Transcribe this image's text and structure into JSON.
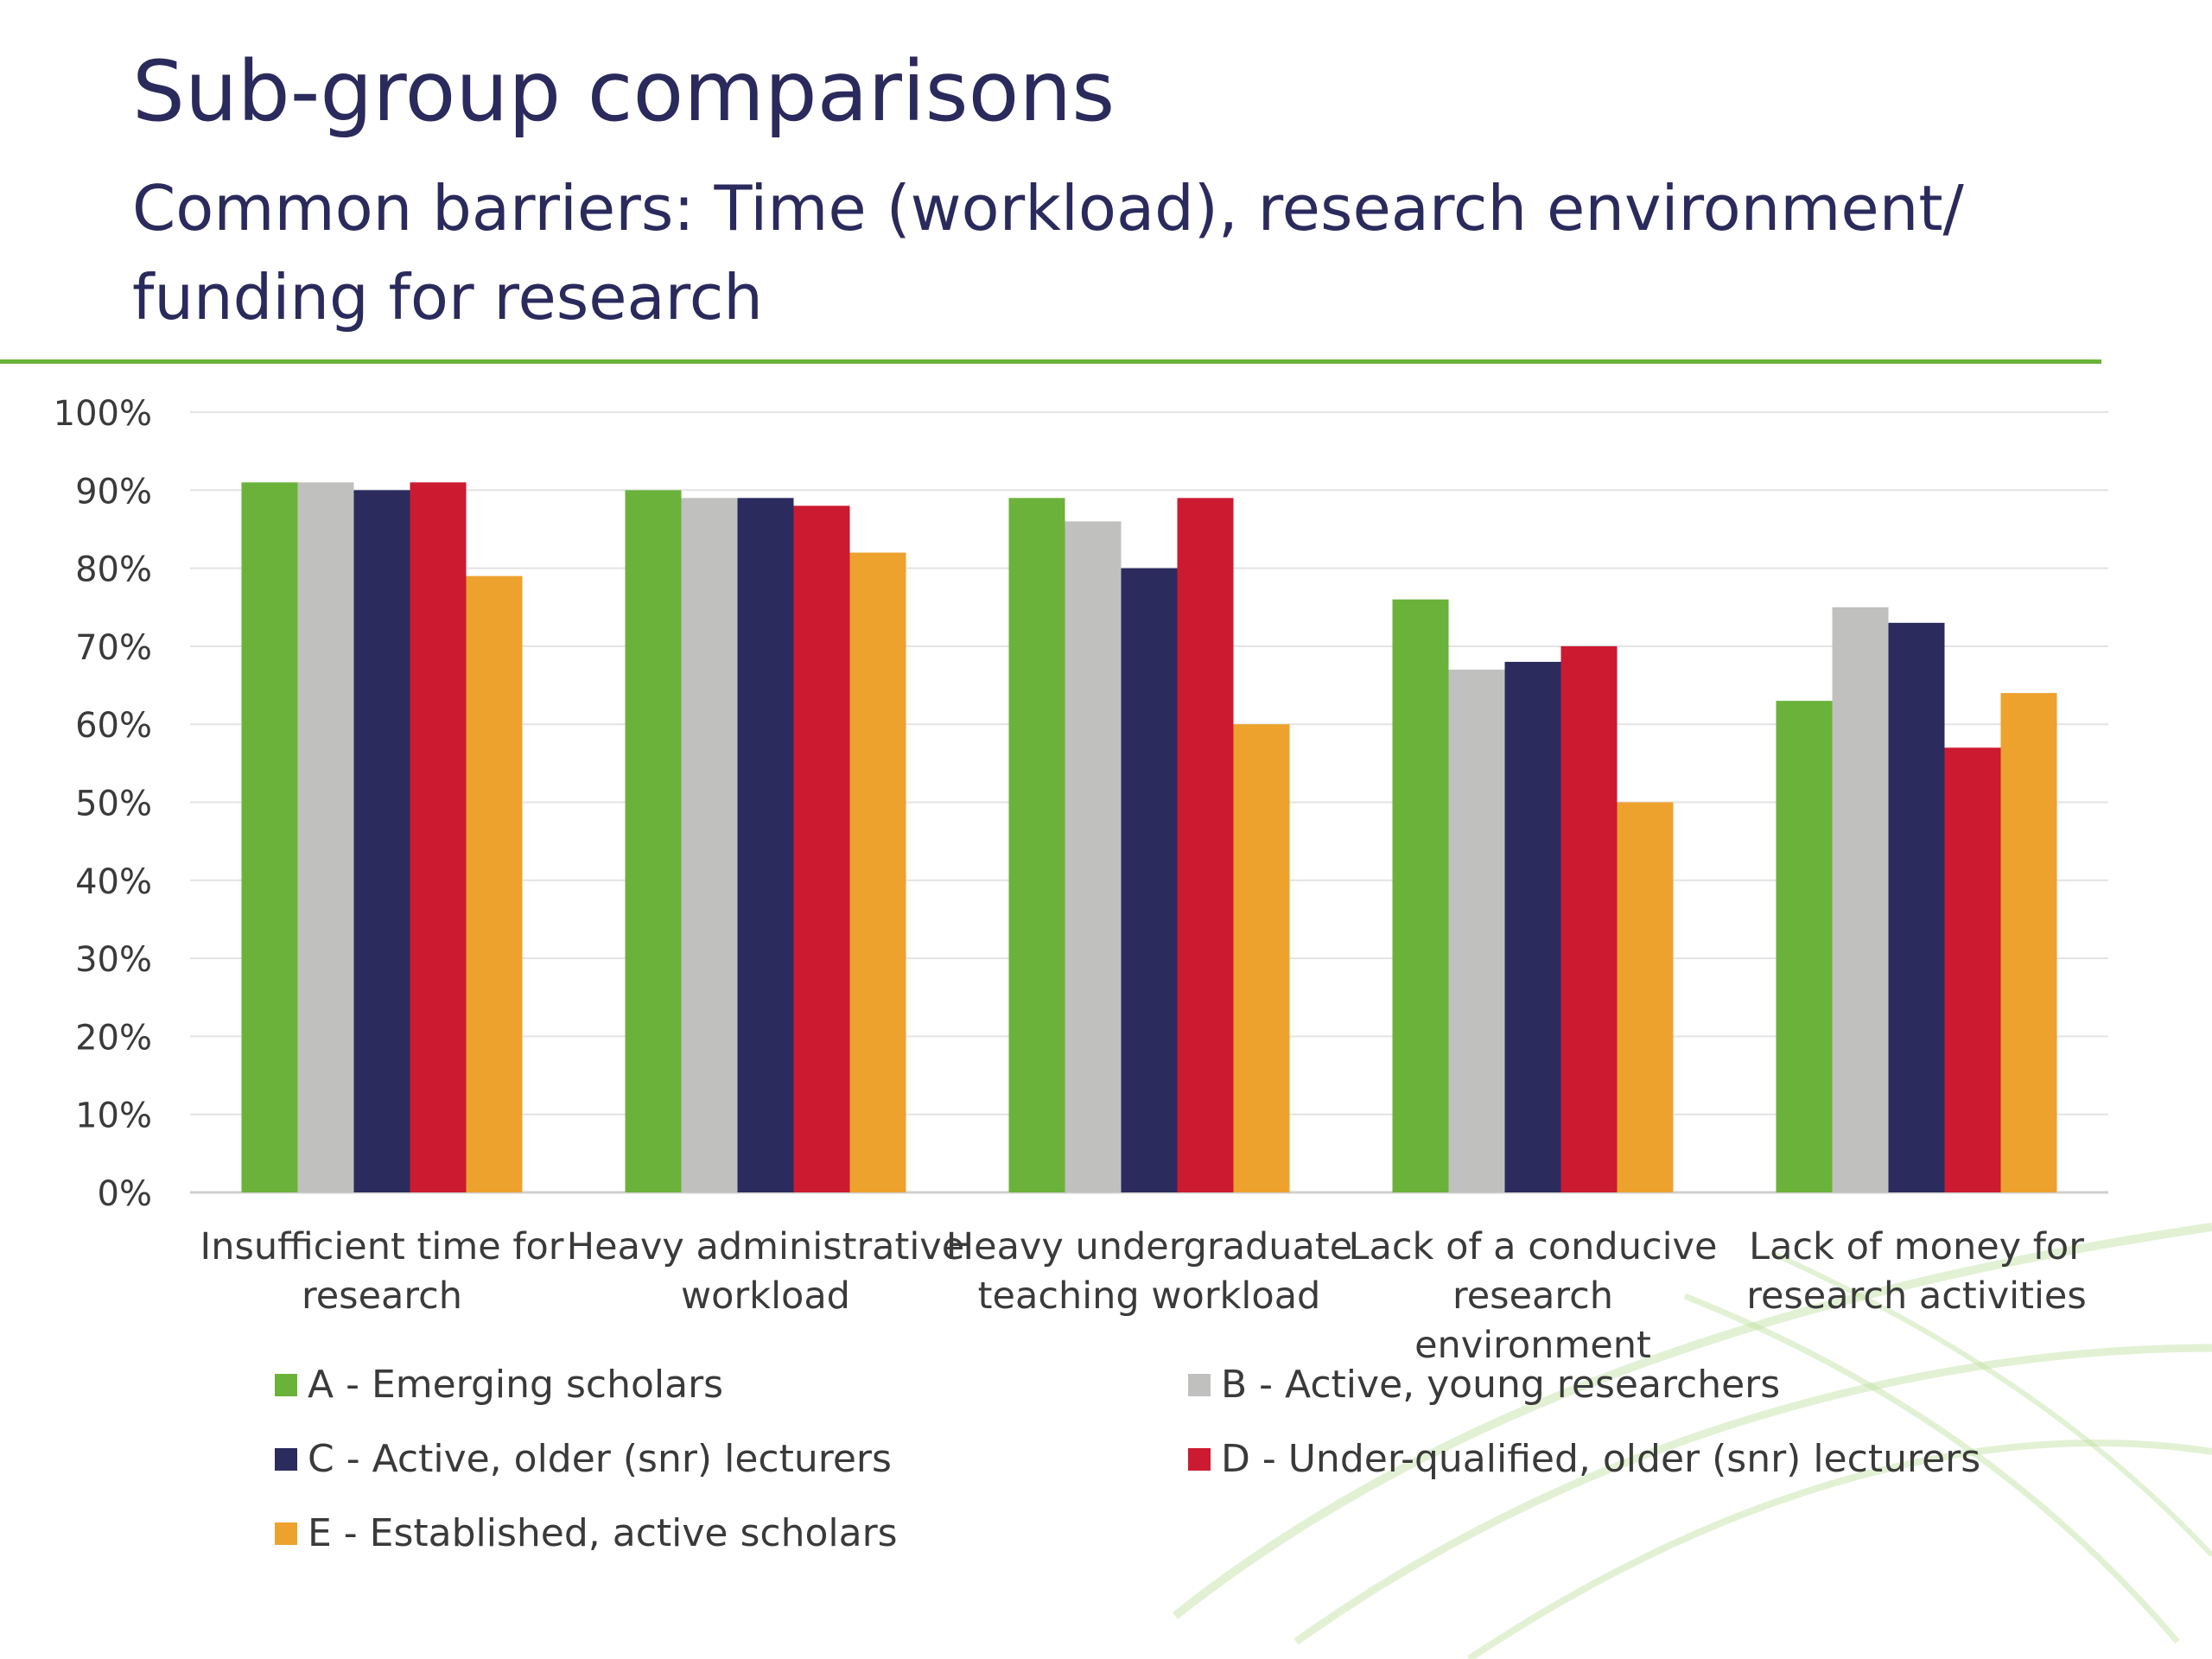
{
  "slide": {
    "title": "Sub-group comparisons",
    "subtitle": "Common barriers: Time (workload), research environment/ funding for research",
    "accent_color": "#6bb23a",
    "text_color": "#2a2a5c"
  },
  "chart_data": {
    "type": "bar",
    "title": "",
    "xlabel": "",
    "ylabel": "",
    "ylim": [
      0,
      100
    ],
    "yticks": [
      "0%",
      "10%",
      "20%",
      "30%",
      "40%",
      "50%",
      "60%",
      "70%",
      "80%",
      "90%",
      "100%"
    ],
    "grid": true,
    "legend_position": "bottom",
    "categories": [
      [
        "Insufficient time for",
        "research"
      ],
      [
        "Heavy administrative",
        "workload"
      ],
      [
        "Heavy undergraduate",
        "teaching workload"
      ],
      [
        "Lack of a conducive",
        "research",
        "environment"
      ],
      [
        "Lack of money for",
        "research activities"
      ]
    ],
    "series": [
      {
        "name": "A - Emerging scholars",
        "color": "#6bb23a",
        "values": [
          91,
          90,
          89,
          76,
          63
        ]
      },
      {
        "name": "B - Active, young researchers",
        "color": "#c0c0bf",
        "values": [
          91,
          89,
          86,
          67,
          75
        ]
      },
      {
        "name": "C - Active, older (snr) lecturers",
        "color": "#2b2b5e",
        "values": [
          90,
          89,
          80,
          68,
          73
        ]
      },
      {
        "name": "D - Under-qualified, older (snr) lecturers",
        "color": "#cc1a31",
        "values": [
          91,
          88,
          89,
          70,
          57
        ]
      },
      {
        "name": "E - Established, active scholars",
        "color": "#eda22e",
        "values": [
          79,
          82,
          60,
          50,
          64
        ]
      }
    ]
  }
}
